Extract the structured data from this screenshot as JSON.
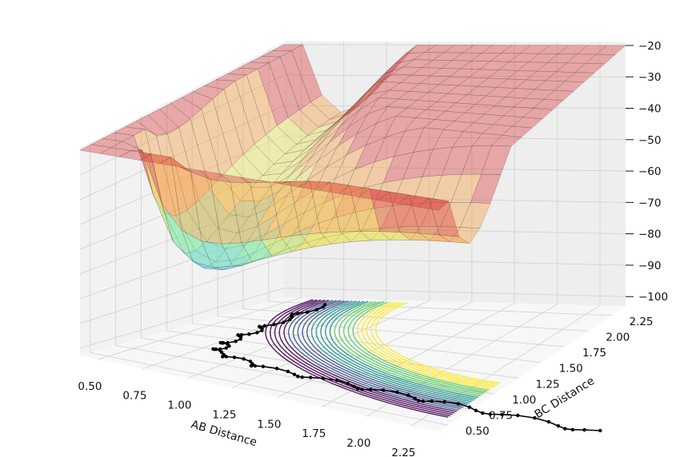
{
  "chart_data": {
    "type": "surface3d",
    "title": "",
    "xlabel": "AB Distance",
    "ylabel": "BC Distance",
    "zlabel": "",
    "x_ticks": [
      "0.50",
      "0.75",
      "1.00",
      "1.25",
      "1.50",
      "1.75",
      "2.00",
      "2.25"
    ],
    "y_ticks": [
      "0.50",
      "0.75",
      "1.00",
      "1.25",
      "1.50",
      "1.75",
      "2.00",
      "2.25"
    ],
    "z_ticks": [
      "−20",
      "−30",
      "−40",
      "−50",
      "−60",
      "−70",
      "−80",
      "−90",
      "−100"
    ],
    "xlim": [
      0.4,
      2.4
    ],
    "ylim": [
      0.4,
      2.4
    ],
    "zlim": [
      -103,
      -19
    ],
    "surface_colormap": "jet",
    "surface_alpha": 0.4,
    "contour_colormap": "viridis",
    "contour_levels": 25,
    "trajectory": {
      "color": "#000000",
      "marker": "dot",
      "description_points": [
        [
          0.74,
          2.2
        ],
        [
          0.76,
          1.6
        ],
        [
          0.78,
          1.2
        ],
        [
          0.85,
          0.95
        ],
        [
          1.2,
          0.82
        ],
        [
          1.8,
          0.78
        ],
        [
          2.4,
          0.76
        ],
        [
          3.2,
          0.75
        ]
      ]
    },
    "surface_colors": {
      "high": "#d93a3a",
      "upper": "#f49a3c",
      "mid_high": "#e9e04a",
      "mid": "#7ee8a0",
      "mid_low": "#4fc6f2",
      "low": "#2a4fe0",
      "deep": "#1f1fb0"
    },
    "grid": true,
    "pane_color": "#f2f2f2"
  }
}
